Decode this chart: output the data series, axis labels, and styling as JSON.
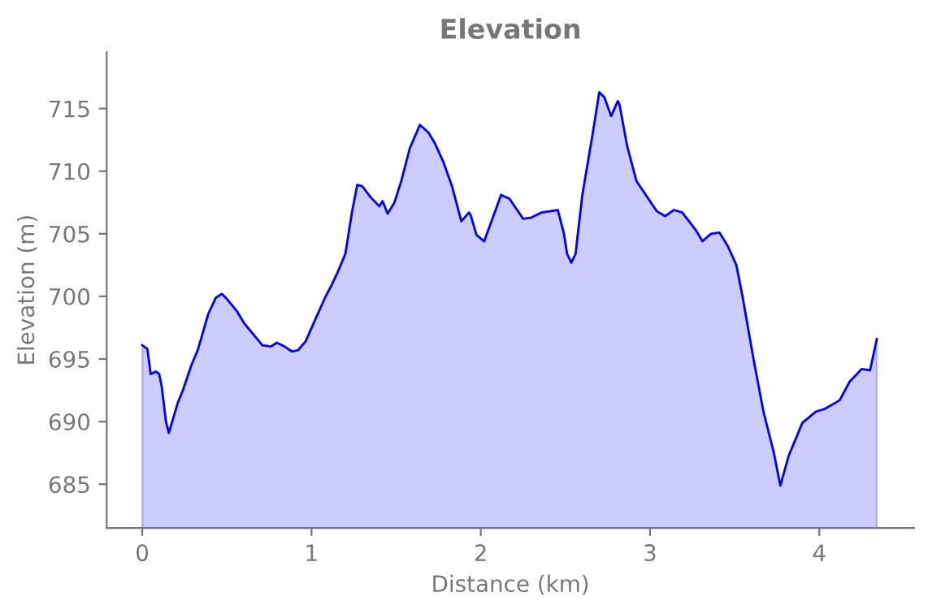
{
  "chart_data": {
    "type": "area",
    "title": "Elevation",
    "xlabel": "Distance (km)",
    "ylabel": "Elevation (m)",
    "xlim": [
      -0.21,
      4.56
    ],
    "ylim": [
      681.5,
      719.5
    ],
    "xticks": [
      0,
      1,
      2,
      3,
      4
    ],
    "yticks": [
      685,
      690,
      695,
      700,
      705,
      710,
      715
    ],
    "grid": false,
    "legend": false,
    "series": [
      {
        "color": "#0000ff",
        "x": [
          0,
          0.03,
          0.05,
          0.08,
          0.1,
          0.115,
          0.14,
          0.157,
          0.21,
          0.24,
          0.29,
          0.33,
          0.39,
          0.435,
          0.47,
          0.5,
          0.56,
          0.6,
          0.66,
          0.71,
          0.76,
          0.795,
          0.84,
          0.885,
          0.92,
          0.965,
          1.03,
          1.08,
          1.115,
          1.16,
          1.2,
          1.24,
          1.27,
          1.3,
          1.35,
          1.4,
          1.42,
          1.45,
          1.49,
          1.53,
          1.58,
          1.64,
          1.69,
          1.73,
          1.78,
          1.83,
          1.885,
          1.93,
          1.94,
          1.975,
          2.02,
          2.12,
          2.17,
          2.2,
          2.25,
          2.3,
          2.36,
          2.455,
          2.49,
          2.51,
          2.535,
          2.56,
          2.6,
          2.66,
          2.7,
          2.73,
          2.77,
          2.81,
          2.82,
          2.865,
          2.92,
          2.97,
          3.04,
          3.09,
          3.14,
          3.19,
          3.23,
          3.27,
          3.31,
          3.36,
          3.41,
          3.46,
          3.51,
          3.545,
          3.61,
          3.67,
          3.73,
          3.77,
          3.82,
          3.9,
          3.98,
          4.03,
          4.12,
          4.18,
          4.25,
          4.3,
          4.34
        ],
        "values": [
          696.1,
          695.8,
          693.8,
          694.0,
          693.8,
          692.8,
          690.0,
          689.1,
          691.5,
          692.5,
          694.5,
          695.8,
          698.6,
          699.9,
          700.2,
          699.8,
          698.8,
          697.9,
          696.9,
          696.1,
          696.0,
          696.3,
          696.0,
          695.6,
          695.7,
          696.4,
          698.4,
          699.9,
          700.8,
          702.1,
          703.4,
          706.8,
          708.9,
          708.8,
          707.9,
          707.2,
          707.6,
          706.6,
          707.5,
          709.2,
          711.8,
          713.7,
          713.1,
          712.2,
          710.7,
          708.8,
          706.0,
          706.7,
          706.5,
          704.9,
          704.4,
          708.1,
          707.8,
          707.2,
          706.2,
          706.3,
          706.7,
          706.9,
          705.1,
          703.4,
          702.7,
          703.4,
          708.1,
          712.9,
          716.3,
          715.9,
          714.4,
          715.6,
          715.3,
          712.0,
          709.2,
          708.2,
          706.8,
          706.4,
          706.9,
          706.7,
          706.0,
          705.3,
          704.4,
          705.0,
          705.1,
          704.0,
          702.5,
          700.1,
          695.1,
          690.8,
          687.6,
          684.9,
          687.3,
          689.9,
          690.8,
          691.0,
          691.7,
          693.2,
          694.2,
          694.1,
          696.6
        ]
      }
    ]
  }
}
